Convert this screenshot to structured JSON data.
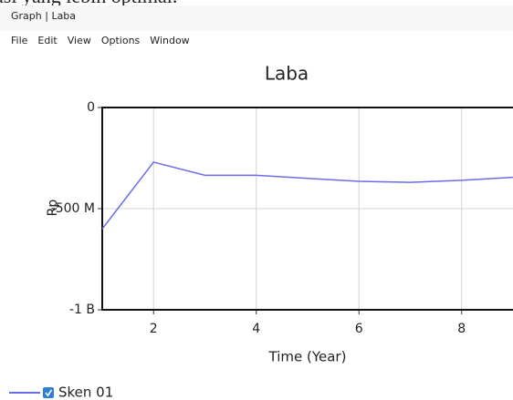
{
  "background_text": "asi yang lebih optimal.",
  "window": {
    "title": "Graph | Laba",
    "menu": [
      "File",
      "Edit",
      "View",
      "Options",
      "Window"
    ]
  },
  "chart_data": {
    "type": "line",
    "title": "Laba",
    "x_label": "Time (Year)",
    "y_label": "Rp",
    "x": [
      1,
      2,
      3,
      4,
      5,
      6,
      7,
      8,
      9
    ],
    "series": [
      {
        "name": "Sken 01",
        "color": "#6b6bec",
        "values": [
          -600000000,
          -270000000,
          -335000000,
          -335000000,
          -350000000,
          -365000000,
          -370000000,
          -360000000,
          -345000000
        ]
      }
    ],
    "xlim": [
      1,
      9
    ],
    "xticks": [
      2,
      4,
      6,
      8
    ],
    "ylim": [
      -1000000000,
      0
    ],
    "yticks": [
      {
        "value": -1000000000,
        "label": "-1 B"
      },
      {
        "value": -500000000,
        "label": "-500 M"
      },
      0
    ],
    "grid": true,
    "legend": "bottom-left"
  }
}
